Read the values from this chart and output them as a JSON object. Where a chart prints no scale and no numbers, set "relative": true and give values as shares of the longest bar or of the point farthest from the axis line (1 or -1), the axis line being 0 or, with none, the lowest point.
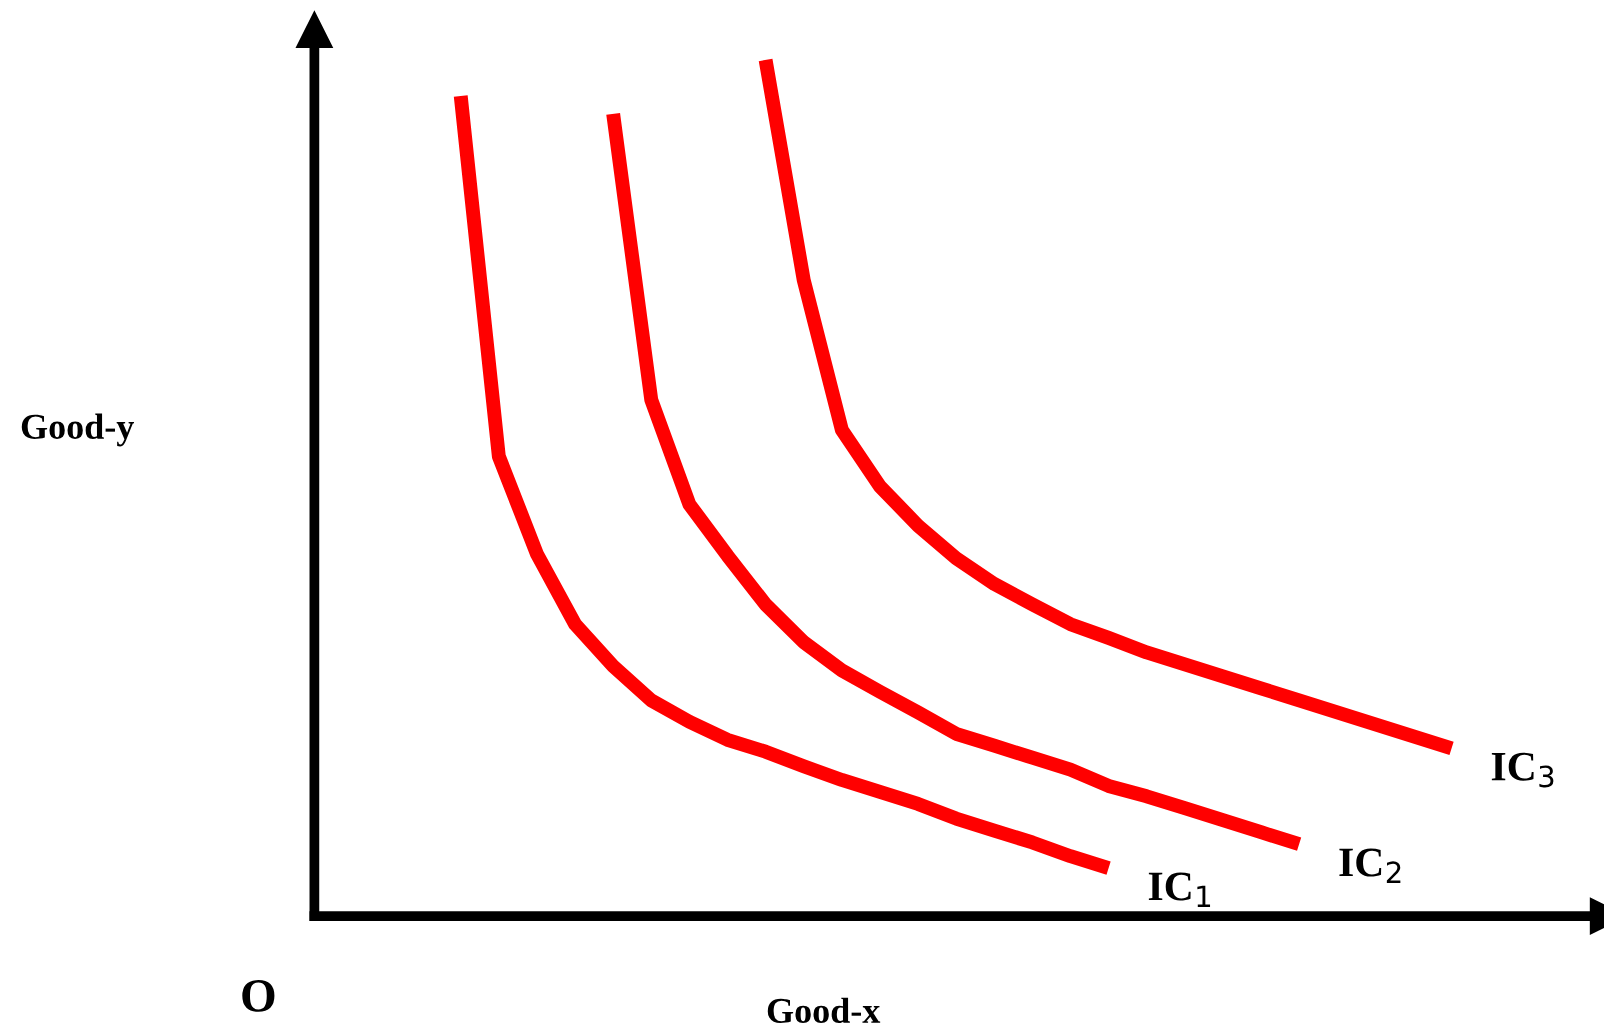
{
  "chart_data": {
    "type": "line",
    "relative": true,
    "xlabel": "Good-x",
    "annotations": [
      "O",
      "Good-y"
    ],
    "marker": "none",
    "line_style": "solid",
    "categories": [
      null,
      null,
      null,
      null,
      null,
      null,
      null,
      null,
      null,
      null,
      null,
      null,
      null,
      null,
      null,
      null,
      null,
      null,
      null,
      null,
      null,
      null,
      null,
      null,
      null,
      null,
      null
    ],
    "series": [
      {
        "name": "IC$_{1}$",
        "color": "#ff0000",
        "values": [
          0.958,
          0.537,
          0.423,
          0.341,
          0.292,
          0.252,
          0.227,
          0.206,
          0.192,
          0.175,
          0.159,
          0.145,
          0.131,
          0.114,
          0.1,
          0.086,
          0.07,
          0.056,
          null,
          null,
          null,
          null,
          null,
          null,
          null,
          null,
          null
        ]
      },
      {
        "name": "IC$_{2}$",
        "color": "#ff0000",
        "values": [
          null,
          null,
          null,
          null,
          0.937,
          0.603,
          0.481,
          0.421,
          0.364,
          0.32,
          0.287,
          0.262,
          0.238,
          0.213,
          0.199,
          0.185,
          0.171,
          0.152,
          0.14,
          0.126,
          0.112,
          0.098,
          0.084,
          null,
          null,
          null,
          null
        ]
      },
      {
        "name": "IC$_{3}$",
        "color": "#ff0000",
        "values": [
          null,
          null,
          null,
          null,
          null,
          null,
          null,
          null,
          1.0,
          0.743,
          0.568,
          0.502,
          0.456,
          0.418,
          0.388,
          0.364,
          0.341,
          0.325,
          0.308,
          0.294,
          0.28,
          0.266,
          0.252,
          0.238,
          0.224,
          0.21,
          0.196
        ]
      }
    ]
  }
}
